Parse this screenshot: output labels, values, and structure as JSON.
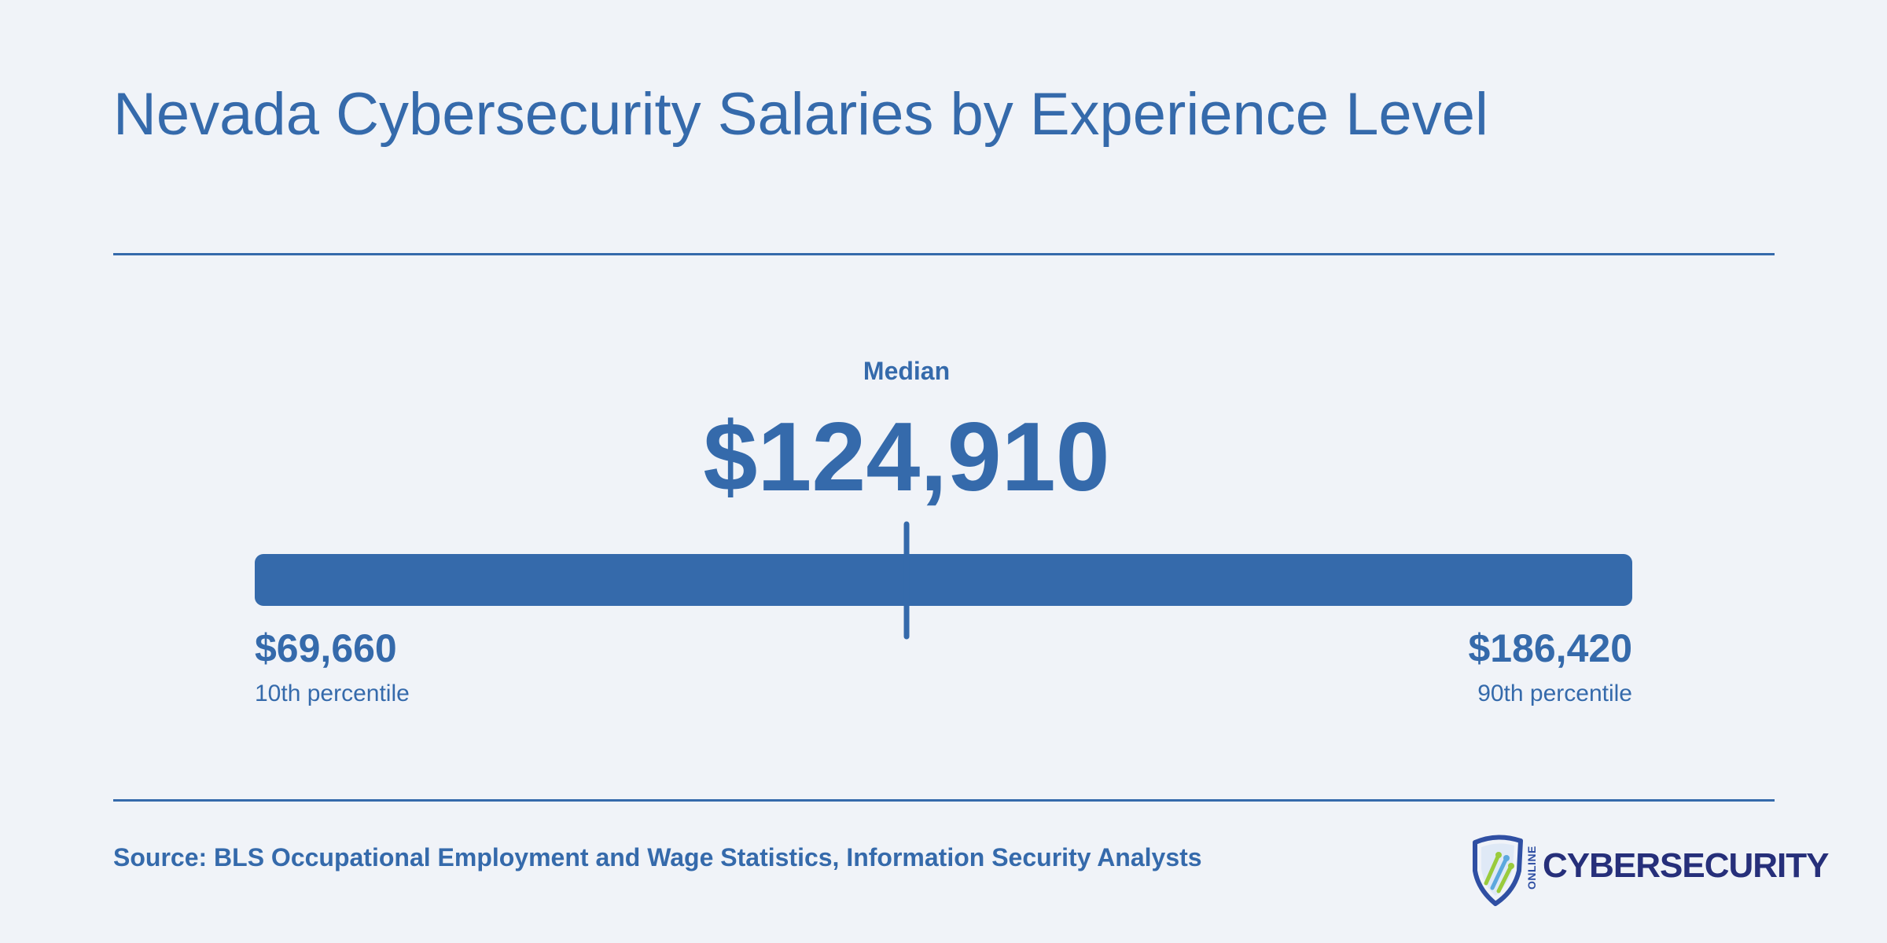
{
  "chart_data": {
    "type": "range",
    "title": "Nevada Cybersecurity Salaries by Experience Level",
    "min": {
      "value": 69660,
      "label": "$69,660",
      "caption": "10th percentile"
    },
    "median": {
      "value": 124910,
      "label": "$124,910",
      "caption": "Median"
    },
    "max": {
      "value": 186420,
      "label": "$186,420",
      "caption": "90th percentile"
    }
  },
  "source": "Source: BLS Occupational Employment and Wage Statistics, Information Security Analysts",
  "logo": {
    "online": "ONLINE",
    "word": "CYBERSECURITY"
  },
  "colors": {
    "accent": "#356aab",
    "background": "#f0f3f8",
    "logo_text": "#262f7a"
  }
}
